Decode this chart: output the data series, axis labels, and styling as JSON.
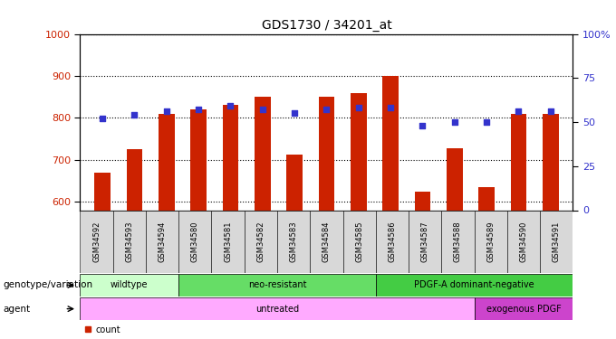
{
  "title": "GDS1730 / 34201_at",
  "samples": [
    "GSM34592",
    "GSM34593",
    "GSM34594",
    "GSM34580",
    "GSM34581",
    "GSM34582",
    "GSM34583",
    "GSM34584",
    "GSM34585",
    "GSM34586",
    "GSM34587",
    "GSM34588",
    "GSM34589",
    "GSM34590",
    "GSM34591"
  ],
  "counts": [
    670,
    725,
    810,
    820,
    830,
    850,
    712,
    850,
    860,
    900,
    625,
    728,
    635,
    810,
    810
  ],
  "percentile": [
    52,
    54,
    56,
    57,
    59,
    57,
    55,
    57,
    58,
    58,
    48,
    50,
    50,
    56,
    56
  ],
  "ylim_left": [
    580,
    1000
  ],
  "ylim_right": [
    0,
    100
  ],
  "yticks_left": [
    600,
    700,
    800,
    900,
    1000
  ],
  "yticks_right": [
    0,
    25,
    50,
    75,
    100
  ],
  "bar_color": "#cc2200",
  "dot_color": "#3333cc",
  "bar_bottom": 580,
  "group_configs": [
    {
      "name": "wildtype",
      "start": 0,
      "end": 3,
      "color": "#ccffcc"
    },
    {
      "name": "neo-resistant",
      "start": 3,
      "end": 9,
      "color": "#66dd66"
    },
    {
      "name": "PDGF-A dominant-negative",
      "start": 9,
      "end": 15,
      "color": "#44cc44"
    }
  ],
  "agent_configs": [
    {
      "name": "untreated",
      "start": 0,
      "end": 12,
      "color": "#ffaaff"
    },
    {
      "name": "exogenous PDGF",
      "start": 12,
      "end": 15,
      "color": "#cc44cc"
    }
  ],
  "annotation_row1_label": "genotype/variation",
  "annotation_row2_label": "agent",
  "legend_count_color": "#cc2200",
  "legend_pct_color": "#3333cc",
  "tick_label_bg": "#d8d8d8"
}
